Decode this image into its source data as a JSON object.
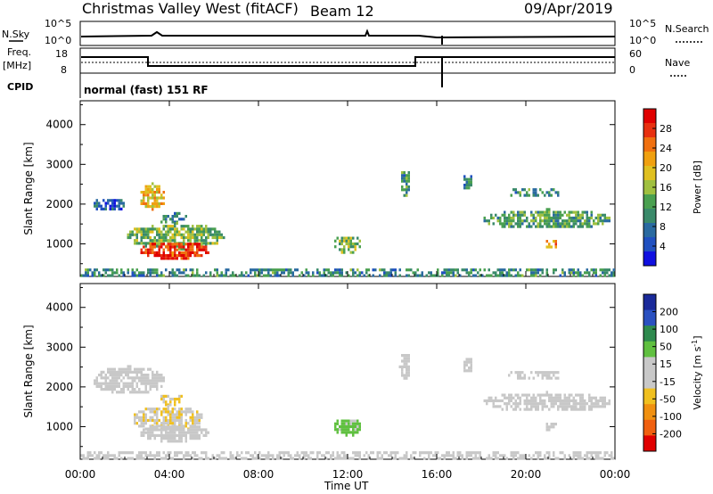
{
  "header": {
    "title": "Christmas Valley West (fitACF)",
    "beam": "Beam 12",
    "date": "09/Apr/2019"
  },
  "status_panels": {
    "nsky_label": "N.Sky",
    "nsearch_label": "N.Search",
    "log_top": "10^5",
    "log_bottom": "10^0",
    "freq_label": "Freq.",
    "freq_unit": "[MHz]",
    "freq_ticks": [
      "18",
      "8"
    ],
    "nave_ticks": [
      "60",
      "0"
    ],
    "nave_label": "Nave",
    "cpid_label": "CPID",
    "cpid_text": "normal (fast) 151 RF",
    "freq_steps": [
      {
        "from": 0.0,
        "to": 3.0,
        "mhz": 14.5
      },
      {
        "from": 3.0,
        "to": 15.0,
        "mhz": 10.5
      },
      {
        "from": 15.0,
        "to": 24.0,
        "mhz": 14.5
      }
    ]
  },
  "time_axis": {
    "label": "Time UT",
    "ticks": [
      "00:00",
      "04:00",
      "08:00",
      "12:00",
      "16:00",
      "20:00",
      "00:00"
    ]
  },
  "colorbars": {
    "power": {
      "label": "Power [dB]",
      "ticks": [
        "4",
        "8",
        "12",
        "16",
        "20",
        "24",
        "28"
      ],
      "colors": [
        "#1010e0",
        "#2050c0",
        "#2a6aa0",
        "#3a8a6a",
        "#4aa050",
        "#a0c040",
        "#e0c020",
        "#f0a010",
        "#f07010",
        "#e83010",
        "#e00000"
      ]
    },
    "velocity": {
      "label": "Velocity [m s^-1]",
      "ticks": [
        "200",
        "100",
        "50",
        "15",
        "-15",
        "-50",
        "-100",
        "-200"
      ],
      "colors": [
        "#1a2a9a",
        "#2a50c0",
        "#2e8a4e",
        "#60c040",
        "#c8c8c8",
        "#c8c8c8",
        "#f0c020",
        "#f09010",
        "#f06010",
        "#e00000"
      ]
    }
  },
  "chart_data": [
    {
      "type": "heatmap",
      "title": "Power",
      "xlabel": "Time UT",
      "ylabel": "Slant Range [km]",
      "xlim": [
        0,
        24
      ],
      "ylim": [
        180,
        4600
      ],
      "yticks": [
        1000,
        2000,
        3000,
        4000
      ],
      "colorbar": {
        "label": "Power [dB]",
        "range": [
          0,
          32
        ]
      },
      "regions": [
        {
          "t": [
            0.5,
            2.0
          ],
          "r": [
            1850,
            2200
          ],
          "value": 6
        },
        {
          "t": [
            2.6,
            3.8
          ],
          "r": [
            1900,
            2550
          ],
          "value": 20
        },
        {
          "t": [
            3.6,
            4.8
          ],
          "r": [
            1550,
            1800
          ],
          "value": 10
        },
        {
          "t": [
            2.0,
            6.5
          ],
          "r": [
            900,
            1550
          ],
          "value": 14
        },
        {
          "t": [
            2.6,
            5.8
          ],
          "r": [
            650,
            1100
          ],
          "value": 28
        },
        {
          "t": [
            0.0,
            24.0
          ],
          "r": [
            200,
            380
          ],
          "value": 10
        },
        {
          "t": [
            11.3,
            12.6
          ],
          "r": [
            800,
            1250
          ],
          "value": 14
        },
        {
          "t": [
            14.3,
            14.8
          ],
          "r": [
            2200,
            2900
          ],
          "value": 10
        },
        {
          "t": [
            17.1,
            17.6
          ],
          "r": [
            2400,
            2800
          ],
          "value": 8
        },
        {
          "t": [
            19.2,
            21.5
          ],
          "r": [
            2200,
            2400
          ],
          "value": 10
        },
        {
          "t": [
            18.0,
            23.8
          ],
          "r": [
            1400,
            1900
          ],
          "value": 12
        },
        {
          "t": [
            20.9,
            21.3
          ],
          "r": [
            900,
            1100
          ],
          "value": 22
        }
      ]
    },
    {
      "type": "heatmap",
      "title": "Velocity",
      "xlabel": "Time UT",
      "ylabel": "Slant Range [km]",
      "xlim": [
        0,
        24
      ],
      "ylim": [
        180,
        4600
      ],
      "yticks": [
        1000,
        2000,
        3000,
        4000
      ],
      "colorbar": {
        "label": "Velocity [m s^-1]",
        "range": [
          -250,
          250
        ]
      },
      "regions": [
        {
          "t": [
            0.5,
            3.8
          ],
          "r": [
            1850,
            2550
          ],
          "value": 0
        },
        {
          "t": [
            3.6,
            4.6
          ],
          "r": [
            1550,
            1800
          ],
          "value": -60
        },
        {
          "t": [
            2.3,
            5.5
          ],
          "r": [
            900,
            1550
          ],
          "value": -40
        },
        {
          "t": [
            2.6,
            5.8
          ],
          "r": [
            650,
            1100
          ],
          "value": 0
        },
        {
          "t": [
            0.0,
            24.0
          ],
          "r": [
            200,
            380
          ],
          "value": 0
        },
        {
          "t": [
            11.3,
            12.6
          ],
          "r": [
            800,
            1250
          ],
          "value": 60
        },
        {
          "t": [
            14.3,
            14.8
          ],
          "r": [
            2200,
            2900
          ],
          "value": 0
        },
        {
          "t": [
            17.1,
            17.6
          ],
          "r": [
            2400,
            2800
          ],
          "value": 0
        },
        {
          "t": [
            19.2,
            21.5
          ],
          "r": [
            2200,
            2400
          ],
          "value": 0
        },
        {
          "t": [
            18.0,
            23.8
          ],
          "r": [
            1400,
            1900
          ],
          "value": 0
        },
        {
          "t": [
            20.9,
            21.3
          ],
          "r": [
            900,
            1100
          ],
          "value": 0
        }
      ]
    }
  ]
}
